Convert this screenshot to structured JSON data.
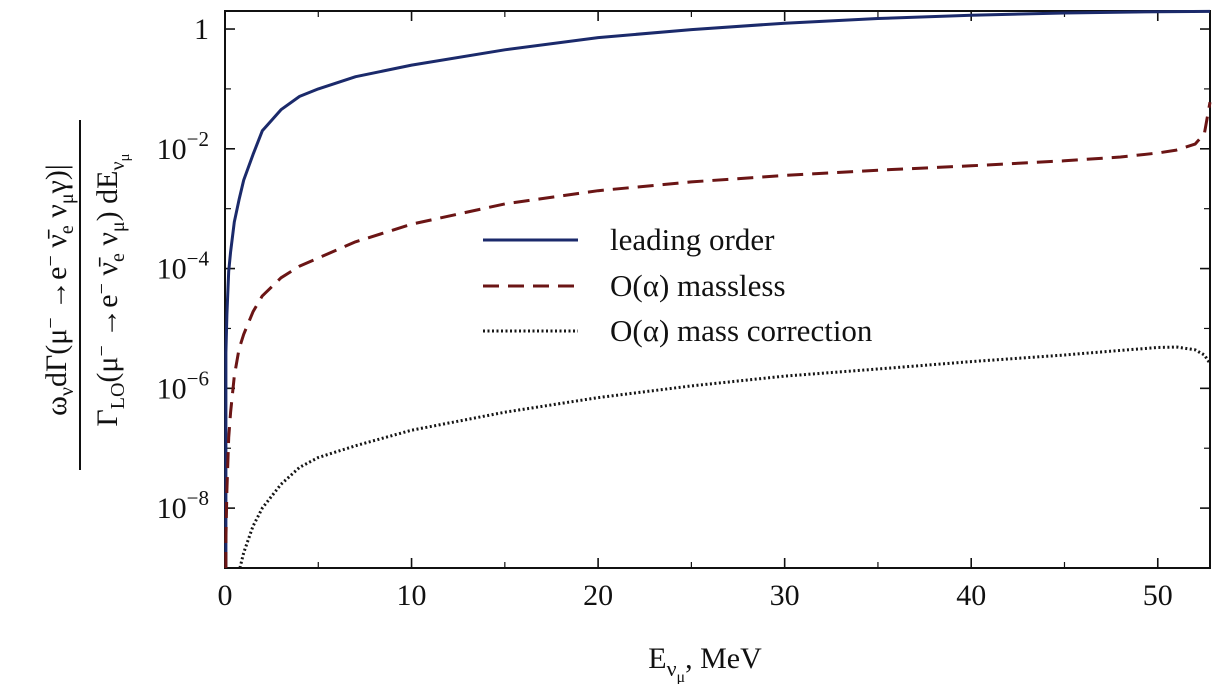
{
  "chart_data": {
    "type": "line",
    "title": "",
    "xlabel": "E_ν_μ, MeV",
    "ylabel": "ω_ν dΓ(μ⁻ → e⁻ ν̄_e ν_μ γ)| / Γ_LO(μ⁻ → e⁻ ν̄_e ν_μ) dE_ν_μ",
    "x_scale": "linear",
    "y_scale": "log",
    "xlim": [
      0,
      52.8
    ],
    "ylim": [
      1e-09,
      2
    ],
    "x_ticks": [
      0,
      10,
      20,
      30,
      40,
      50
    ],
    "x_tick_labels": [
      "0",
      "10",
      "20",
      "30",
      "40",
      "50"
    ],
    "y_ticks": [
      1,
      0.01,
      0.0001,
      1e-06,
      1e-08
    ],
    "y_tick_labels": [
      {
        "base": "1",
        "exp": ""
      },
      {
        "base": "10",
        "exp": "−2"
      },
      {
        "base": "10",
        "exp": "−4"
      },
      {
        "base": "10",
        "exp": "−6"
      },
      {
        "base": "10",
        "exp": "−8"
      }
    ],
    "grid": false,
    "legend_position": "center",
    "series": [
      {
        "name": "leading order",
        "color": "#1b2a6b",
        "style": "solid",
        "x": [
          0.05,
          0.1,
          0.2,
          0.3,
          0.5,
          0.75,
          1,
          1.5,
          2,
          3,
          4,
          5,
          7,
          10,
          15,
          20,
          25,
          30,
          35,
          40,
          45,
          50,
          52.8
        ],
        "y": [
          4e-06,
          1.7e-05,
          9e-05,
          0.00019,
          0.0006,
          0.0014,
          0.003,
          0.008,
          0.02,
          0.045,
          0.075,
          0.1,
          0.16,
          0.25,
          0.45,
          0.72,
          0.98,
          1.25,
          1.5,
          1.7,
          1.85,
          1.95,
          1.97
        ]
      },
      {
        "name": "O(α) massless",
        "color": "#6b1515",
        "style": "dashed",
        "x": [
          0.05,
          0.1,
          0.2,
          0.3,
          0.5,
          0.75,
          1,
          1.5,
          2,
          3,
          4,
          5,
          7,
          10,
          15,
          20,
          25,
          30,
          35,
          40,
          45,
          48,
          50,
          51,
          52,
          52.5,
          52.8
        ],
        "y": [
          3e-09,
          2e-08,
          1.5e-07,
          4e-07,
          1.6e-06,
          4.5e-06,
          8e-06,
          1.9e-05,
          3.5e-05,
          7e-05,
          0.00011,
          0.00015,
          0.00028,
          0.00055,
          0.0012,
          0.002,
          0.0028,
          0.0036,
          0.0044,
          0.0052,
          0.0063,
          0.0073,
          0.0085,
          0.0095,
          0.012,
          0.018,
          0.06
        ]
      },
      {
        "name": "O(α) mass correction",
        "color": "#151515",
        "style": "dotted",
        "x": [
          0.8,
          1,
          1.5,
          2,
          3,
          4,
          5,
          7,
          10,
          15,
          20,
          25,
          30,
          35,
          40,
          45,
          48,
          50,
          51,
          52,
          52.5,
          52.8
        ],
        "y": [
          1e-09,
          1.8e-09,
          5e-09,
          1e-08,
          2.5e-08,
          4.8e-08,
          7e-08,
          1.1e-07,
          2e-07,
          4e-07,
          7e-07,
          1.1e-06,
          1.6e-06,
          2.1e-06,
          2.8e-06,
          3.6e-06,
          4.3e-06,
          4.8e-06,
          4.9e-06,
          4.4e-06,
          3.6e-06,
          2.6e-06
        ]
      }
    ]
  }
}
